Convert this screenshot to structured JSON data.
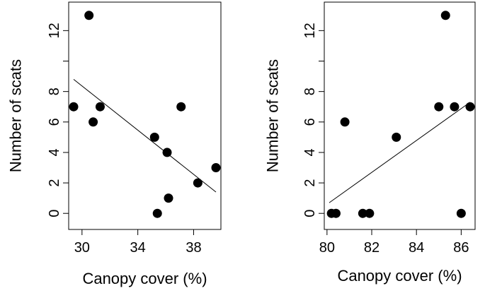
{
  "chart_data": [
    {
      "type": "scatter",
      "title": "",
      "xlabel": "Canopy cover (%)",
      "ylabel": "Number of scats",
      "xlim": [
        29.4,
        39.6
      ],
      "ylim": [
        -0.5,
        13.5
      ],
      "xticks": [
        30,
        34,
        38
      ],
      "xtick_labels": [
        "30",
        "34",
        "38"
      ],
      "yticks": [
        0,
        2,
        4,
        6,
        8,
        10,
        12
      ],
      "ytick_labels": [
        "0",
        "2",
        "4",
        "6",
        "8",
        "",
        "12"
      ],
      "grid": false,
      "points": [
        {
          "x": 29.4,
          "y": 7
        },
        {
          "x": 30.5,
          "y": 13
        },
        {
          "x": 30.8,
          "y": 6
        },
        {
          "x": 31.3,
          "y": 7
        },
        {
          "x": 35.2,
          "y": 5
        },
        {
          "x": 35.4,
          "y": 0
        },
        {
          "x": 36.1,
          "y": 4
        },
        {
          "x": 36.2,
          "y": 1
        },
        {
          "x": 37.1,
          "y": 7
        },
        {
          "x": 38.3,
          "y": 2
        },
        {
          "x": 39.6,
          "y": 3
        }
      ],
      "fit_line": {
        "x": [
          29.4,
          39.6
        ],
        "y": [
          8.8,
          1.4
        ]
      }
    },
    {
      "type": "scatter",
      "title": "",
      "xlabel": "Canopy cover (%)",
      "ylabel": "Number of scats",
      "xlim": [
        80.1,
        86.4
      ],
      "ylim": [
        -0.5,
        13.5
      ],
      "xticks": [
        80,
        82,
        84,
        86
      ],
      "xtick_labels": [
        "80",
        "82",
        "84",
        "86"
      ],
      "yticks": [
        0,
        2,
        4,
        6,
        8,
        10,
        12
      ],
      "ytick_labels": [
        "0",
        "2",
        "4",
        "6",
        "8",
        "",
        "12"
      ],
      "grid": false,
      "points": [
        {
          "x": 80.2,
          "y": 0
        },
        {
          "x": 80.4,
          "y": 0
        },
        {
          "x": 80.8,
          "y": 6
        },
        {
          "x": 81.6,
          "y": 0
        },
        {
          "x": 81.9,
          "y": 0
        },
        {
          "x": 83.1,
          "y": 5
        },
        {
          "x": 85.0,
          "y": 7
        },
        {
          "x": 85.3,
          "y": 13
        },
        {
          "x": 85.7,
          "y": 7
        },
        {
          "x": 86.0,
          "y": 0
        },
        {
          "x": 86.4,
          "y": 7
        }
      ],
      "fit_line": {
        "x": [
          80.1,
          86.4
        ],
        "y": [
          0.7,
          7.3
        ]
      }
    }
  ]
}
